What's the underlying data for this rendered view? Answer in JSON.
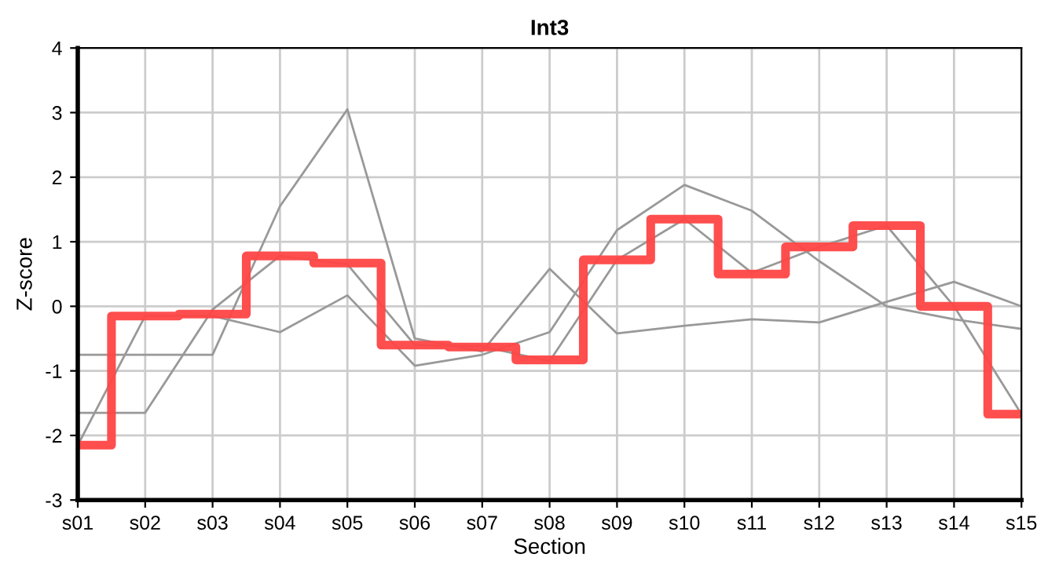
{
  "chart_data": {
    "type": "line",
    "title": "Int3",
    "xlabel": "Section",
    "ylabel": "Z-score",
    "categories": [
      "s01",
      "s02",
      "s03",
      "s04",
      "s05",
      "s06",
      "s07",
      "s08",
      "s09",
      "s10",
      "s11",
      "s12",
      "s13",
      "s14",
      "s15"
    ],
    "series": [
      {
        "color": "#999999",
        "values": [
          -0.75,
          -0.75,
          -0.75,
          1.55,
          3.05,
          -0.5,
          -0.7,
          0.58,
          -0.42,
          -0.3,
          -0.2,
          -0.25,
          0.07,
          0.38,
          0.0
        ]
      },
      {
        "color": "#999999",
        "values": [
          -1.65,
          -1.65,
          -0.05,
          0.78,
          0.65,
          -0.6,
          -0.62,
          -0.85,
          0.72,
          1.35,
          0.52,
          0.92,
          1.25,
          0.0,
          -1.67
        ]
      },
      {
        "color": "#999999",
        "values": [
          -2.15,
          -0.15,
          -0.15,
          -0.4,
          0.17,
          -0.92,
          -0.75,
          -0.4,
          1.18,
          1.88,
          1.48,
          0.7,
          0.0,
          -0.2,
          -0.35
        ]
      },
      {
        "type": "step",
        "color": "#ff4444",
        "values": [
          -2.15,
          -0.15,
          -0.12,
          0.78,
          0.67,
          -0.6,
          -0.63,
          -0.83,
          0.72,
          1.35,
          0.5,
          0.92,
          1.25,
          0.0,
          -1.67
        ]
      }
    ],
    "ylim": [
      -3,
      4
    ],
    "yticks": [
      -3,
      -2,
      -1,
      0,
      1,
      2,
      3,
      4
    ],
    "grid": true,
    "legend": false
  }
}
